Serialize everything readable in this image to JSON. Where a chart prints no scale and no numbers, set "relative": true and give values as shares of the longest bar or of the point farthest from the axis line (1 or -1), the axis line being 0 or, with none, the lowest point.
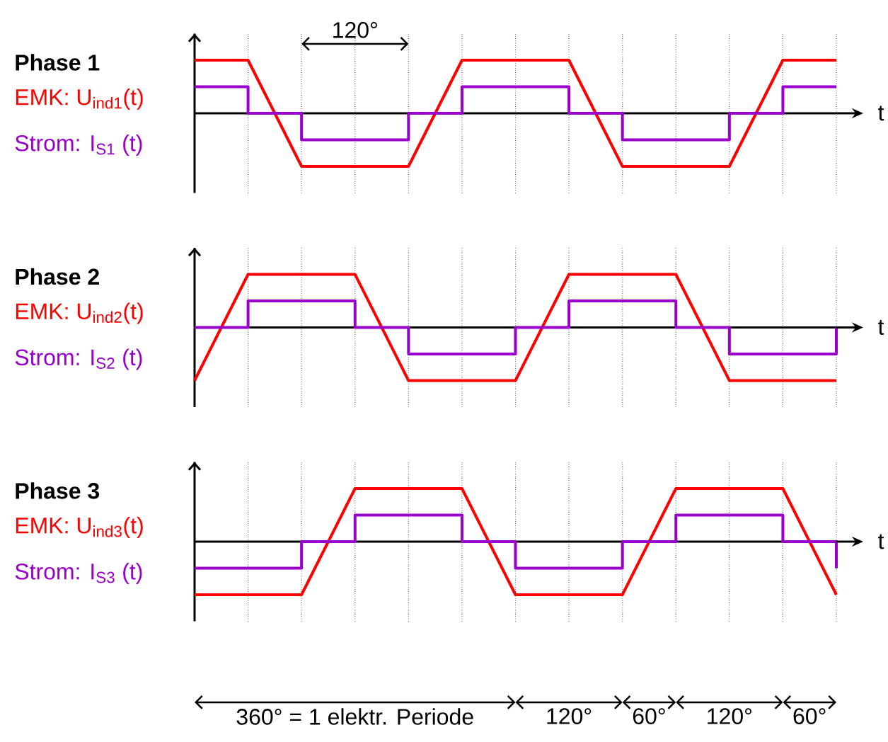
{
  "chart_data": [
    {
      "type": "line",
      "title": "Phase 1",
      "xlabel": "t",
      "relative": true,
      "categories": [
        null,
        null,
        null,
        null,
        null,
        null,
        null,
        null,
        null,
        null,
        null,
        null,
        null
      ],
      "grid": "x",
      "series": [
        {
          "name": "EMK: U$_{ind1}$(t)",
          "color": "#ff0000",
          "values": [
            1,
            1,
            -1,
            -1,
            -1,
            1,
            1,
            1,
            -1,
            -1,
            -1,
            1,
            1
          ]
        },
        {
          "name": "Strom: I$_{S1}$ (t)",
          "type": "step",
          "color": "#9900cc",
          "values": [
            0.5,
            0,
            -0.5,
            -0.5,
            0,
            0.5,
            0.5,
            0,
            -0.5,
            -0.5,
            0,
            0.5,
            0.5
          ]
        }
      ],
      "annotations": [
        "120°"
      ]
    },
    {
      "type": "line",
      "title": "Phase 2",
      "xlabel": "t",
      "relative": true,
      "categories": [
        null,
        null,
        null,
        null,
        null,
        null,
        null,
        null,
        null,
        null,
        null,
        null,
        null
      ],
      "grid": "x",
      "series": [
        {
          "name": "EMK: U$_{ind2}$(t)",
          "color": "#ff0000",
          "values": [
            -1,
            1,
            1,
            1,
            -1,
            -1,
            -1,
            1,
            1,
            1,
            -1,
            -1,
            -1
          ]
        },
        {
          "name": "Strom: I$_{S2}$ (t)",
          "type": "step",
          "color": "#9900cc",
          "values": [
            0,
            0.5,
            0.5,
            0,
            -0.5,
            -0.5,
            0,
            0.5,
            0.5,
            0,
            -0.5,
            -0.5,
            0
          ]
        }
      ]
    },
    {
      "type": "line",
      "title": "Phase 3",
      "xlabel": "t",
      "relative": true,
      "categories": [
        null,
        null,
        null,
        null,
        null,
        null,
        null,
        null,
        null,
        null,
        null,
        null,
        null
      ],
      "grid": "x",
      "series": [
        {
          "name": "EMK: U$_{ind3}$(t)",
          "color": "#ff0000",
          "values": [
            -1,
            -1,
            -1,
            1,
            1,
            1,
            -1,
            -1,
            -1,
            1,
            1,
            1,
            -1
          ]
        },
        {
          "name": "Strom: I$_{S3}$ (t)",
          "type": "step",
          "color": "#9900cc",
          "values": [
            -0.5,
            -0.5,
            0,
            0.5,
            0.5,
            0,
            -0.5,
            -0.5,
            0,
            0.5,
            0.5,
            0,
            -0.5
          ]
        }
      ],
      "annotations": [
        "360° = 1 elektr. Periode",
        "120°",
        "60°",
        "120°",
        "60°"
      ]
    }
  ]
}
